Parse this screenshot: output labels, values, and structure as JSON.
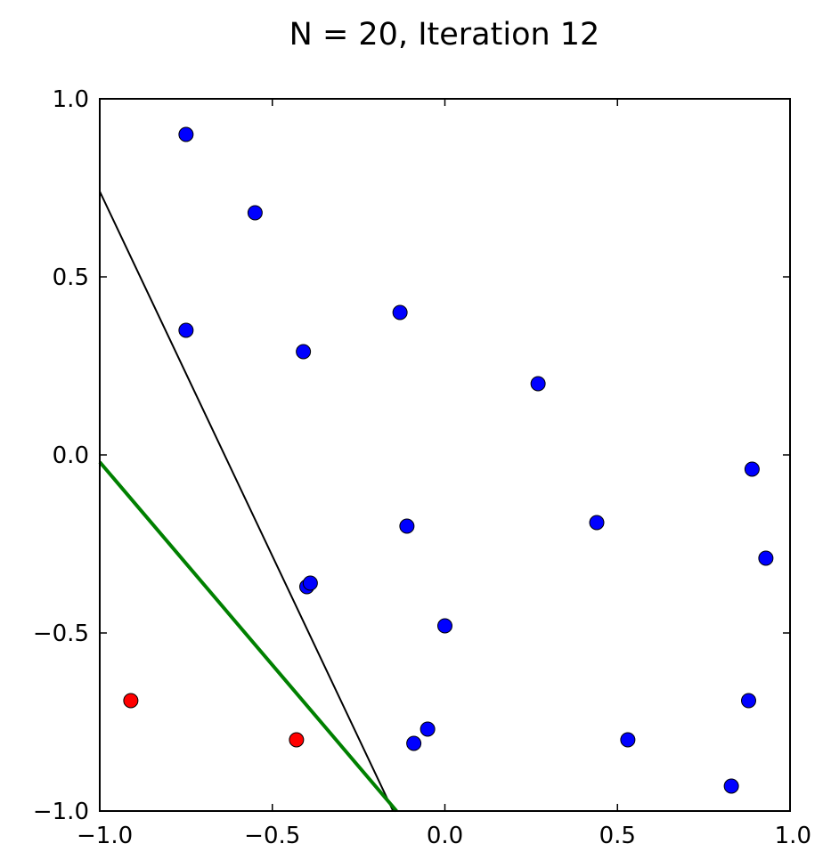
{
  "chart_data": {
    "type": "scatter",
    "title": "N = 20, Iteration 12",
    "xlabel": "",
    "ylabel": "",
    "xlim": [
      -1.0,
      1.0
    ],
    "ylim": [
      -1.0,
      1.0
    ],
    "grid": false,
    "xticks": [
      -1.0,
      -0.5,
      0.0,
      0.5,
      1.0
    ],
    "yticks": [
      -1.0,
      -0.5,
      0.0,
      0.5,
      1.0
    ],
    "xtick_labels": [
      "−1.0",
      "−0.5",
      "0.0",
      "0.5",
      "1.0"
    ],
    "ytick_labels": [
      "−1.0",
      "−0.5",
      "0.0",
      "0.5",
      "1.0"
    ],
    "colors": {
      "blue": "#0000ff",
      "red": "#ff0000",
      "green": "#008000",
      "black": "#000000"
    },
    "series": [
      {
        "color": "#0000ff",
        "points": [
          [
            -0.75,
            0.9
          ],
          [
            -0.55,
            0.68
          ],
          [
            -0.75,
            0.35
          ],
          [
            -0.41,
            0.29
          ],
          [
            -0.13,
            0.4
          ],
          [
            0.27,
            0.2
          ],
          [
            0.89,
            -0.04
          ],
          [
            -0.11,
            -0.2
          ],
          [
            0.44,
            -0.19
          ],
          [
            0.93,
            -0.29
          ],
          [
            -0.4,
            -0.37
          ],
          [
            -0.39,
            -0.36
          ],
          [
            0.0,
            -0.48
          ],
          [
            0.88,
            -0.69
          ],
          [
            -0.05,
            -0.77
          ],
          [
            -0.09,
            -0.81
          ],
          [
            0.53,
            -0.8
          ],
          [
            0.83,
            -0.93
          ]
        ]
      },
      {
        "color": "#ff0000",
        "points": [
          [
            -0.91,
            -0.69
          ],
          [
            -0.43,
            -0.8
          ]
        ]
      }
    ],
    "lines": [
      {
        "color": "#000000",
        "width": 2,
        "points": [
          [
            -1.0,
            0.74
          ],
          [
            -0.15,
            -1.0
          ]
        ]
      },
      {
        "color": "#008000",
        "width": 4,
        "points": [
          [
            -1.0,
            -0.02
          ],
          [
            -0.14,
            -1.0
          ]
        ]
      }
    ]
  }
}
